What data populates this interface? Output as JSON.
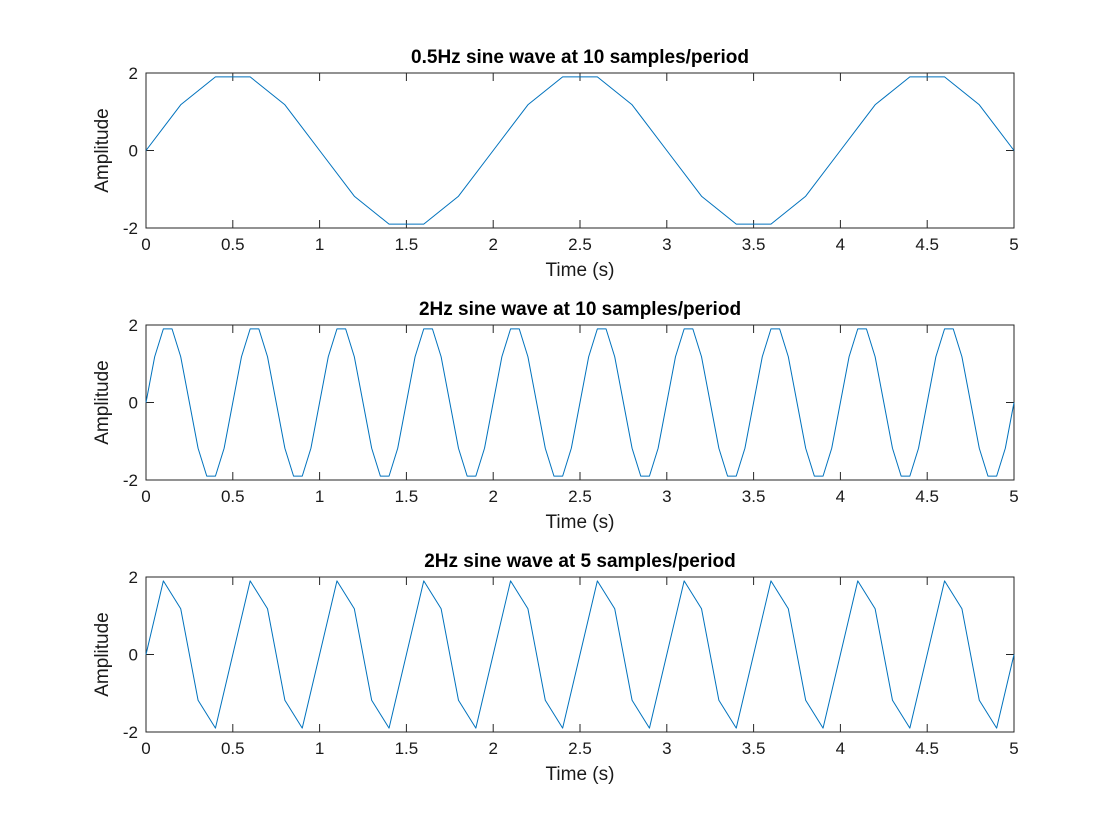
{
  "chart_data": [
    {
      "type": "line",
      "title": "0.5Hz sine wave at 10 samples/period",
      "xlabel": "Time (s)",
      "ylabel": "Amplitude",
      "xlim": [
        0,
        5
      ],
      "ylim": [
        -2,
        2
      ],
      "x_ticks": [
        "0",
        "0.5",
        "1",
        "1.5",
        "2",
        "2.5",
        "3",
        "3.5",
        "4",
        "4.5",
        "5"
      ],
      "y_ticks": [
        "-2",
        "0",
        "2"
      ],
      "grid": false,
      "box": true,
      "line_color": "#0072BD",
      "series": [
        {
          "x": [
            0,
            0.2,
            0.4,
            0.6,
            0.8,
            1.0,
            1.2,
            1.4,
            1.6,
            1.8,
            2.0,
            2.2,
            2.4,
            2.6,
            2.8,
            3.0,
            3.2,
            3.4,
            3.6,
            3.8,
            4.0,
            4.2,
            4.4,
            4.6,
            4.8,
            5.0
          ],
          "y": [
            0,
            1.18,
            1.9,
            1.9,
            1.18,
            0,
            -1.18,
            -1.9,
            -1.9,
            -1.18,
            0,
            1.18,
            1.9,
            1.9,
            1.18,
            0,
            -1.18,
            -1.9,
            -1.9,
            -1.18,
            0,
            1.18,
            1.9,
            1.9,
            1.18,
            0
          ]
        }
      ]
    },
    {
      "type": "line",
      "title": "2Hz sine wave at 10 samples/period",
      "xlabel": "Time (s)",
      "ylabel": "Amplitude",
      "xlim": [
        0,
        5
      ],
      "ylim": [
        -2,
        2
      ],
      "x_ticks": [
        "0",
        "0.5",
        "1",
        "1.5",
        "2",
        "2.5",
        "3",
        "3.5",
        "4",
        "4.5",
        "5"
      ],
      "y_ticks": [
        "-2",
        "0",
        "2"
      ],
      "grid": false,
      "box": true,
      "line_color": "#0072BD",
      "series": [
        {
          "x": [
            0,
            0.05,
            0.1,
            0.15,
            0.2,
            0.25,
            0.3,
            0.35,
            0.4,
            0.45,
            0.5,
            0.55,
            0.6,
            0.65,
            0.7,
            0.75,
            0.8,
            0.85,
            0.9,
            0.95,
            1.0,
            1.05,
            1.1,
            1.15,
            1.2,
            1.25,
            1.3,
            1.35,
            1.4,
            1.45,
            1.5,
            1.55,
            1.6,
            1.65,
            1.7,
            1.75,
            1.8,
            1.85,
            1.9,
            1.95,
            2.0,
            2.05,
            2.1,
            2.15,
            2.2,
            2.25,
            2.3,
            2.35,
            2.4,
            2.45,
            2.5,
            2.55,
            2.6,
            2.65,
            2.7,
            2.75,
            2.8,
            2.85,
            2.9,
            2.95,
            3.0,
            3.05,
            3.1,
            3.15,
            3.2,
            3.25,
            3.3,
            3.35,
            3.4,
            3.45,
            3.5,
            3.55,
            3.6,
            3.65,
            3.7,
            3.75,
            3.8,
            3.85,
            3.9,
            3.95,
            4.0,
            4.05,
            4.1,
            4.15,
            4.2,
            4.25,
            4.3,
            4.35,
            4.4,
            4.45,
            4.5,
            4.55,
            4.6,
            4.65,
            4.7,
            4.75,
            4.8,
            4.85,
            4.9,
            4.95,
            5.0
          ],
          "y": [
            0,
            1.18,
            1.9,
            1.9,
            1.18,
            0,
            -1.18,
            -1.9,
            -1.9,
            -1.18,
            0,
            1.18,
            1.9,
            1.9,
            1.18,
            0,
            -1.18,
            -1.9,
            -1.9,
            -1.18,
            0,
            1.18,
            1.9,
            1.9,
            1.18,
            0,
            -1.18,
            -1.9,
            -1.9,
            -1.18,
            0,
            1.18,
            1.9,
            1.9,
            1.18,
            0,
            -1.18,
            -1.9,
            -1.9,
            -1.18,
            0,
            1.18,
            1.9,
            1.9,
            1.18,
            0,
            -1.18,
            -1.9,
            -1.9,
            -1.18,
            0,
            1.18,
            1.9,
            1.9,
            1.18,
            0,
            -1.18,
            -1.9,
            -1.9,
            -1.18,
            0,
            1.18,
            1.9,
            1.9,
            1.18,
            0,
            -1.18,
            -1.9,
            -1.9,
            -1.18,
            0,
            1.18,
            1.9,
            1.9,
            1.18,
            0,
            -1.18,
            -1.9,
            -1.9,
            -1.18,
            0,
            1.18,
            1.9,
            1.9,
            1.18,
            0,
            -1.18,
            -1.9,
            -1.9,
            -1.18,
            0,
            1.18,
            1.9,
            1.9,
            1.18,
            0,
            -1.18,
            -1.9,
            -1.9,
            -1.18,
            0
          ]
        }
      ]
    },
    {
      "type": "line",
      "title": "2Hz sine wave at 5 samples/period",
      "xlabel": "Time (s)",
      "ylabel": "Amplitude",
      "xlim": [
        0,
        5
      ],
      "ylim": [
        -2,
        2
      ],
      "x_ticks": [
        "0",
        "0.5",
        "1",
        "1.5",
        "2",
        "2.5",
        "3",
        "3.5",
        "4",
        "4.5",
        "5"
      ],
      "y_ticks": [
        "-2",
        "0",
        "2"
      ],
      "grid": false,
      "box": true,
      "line_color": "#0072BD",
      "series": [
        {
          "x": [
            0,
            0.1,
            0.2,
            0.3,
            0.4,
            0.5,
            0.6,
            0.7,
            0.8,
            0.9,
            1.0,
            1.1,
            1.2,
            1.3,
            1.4,
            1.5,
            1.6,
            1.7,
            1.8,
            1.9,
            2.0,
            2.1,
            2.2,
            2.3,
            2.4,
            2.5,
            2.6,
            2.7,
            2.8,
            2.9,
            3.0,
            3.1,
            3.2,
            3.3,
            3.4,
            3.5,
            3.6,
            3.7,
            3.8,
            3.9,
            4.0,
            4.1,
            4.2,
            4.3,
            4.4,
            4.5,
            4.6,
            4.7,
            4.8,
            4.9,
            5.0
          ],
          "y": [
            0,
            1.9,
            1.18,
            -1.18,
            -1.9,
            0,
            1.9,
            1.18,
            -1.18,
            -1.9,
            0,
            1.9,
            1.18,
            -1.18,
            -1.9,
            0,
            1.9,
            1.18,
            -1.18,
            -1.9,
            0,
            1.9,
            1.18,
            -1.18,
            -1.9,
            0,
            1.9,
            1.18,
            -1.18,
            -1.9,
            0,
            1.9,
            1.18,
            -1.18,
            -1.9,
            0,
            1.9,
            1.18,
            -1.18,
            -1.9,
            0,
            1.9,
            1.18,
            -1.18,
            -1.9,
            0,
            1.9,
            1.18,
            -1.18,
            -1.9,
            0
          ]
        }
      ]
    }
  ]
}
